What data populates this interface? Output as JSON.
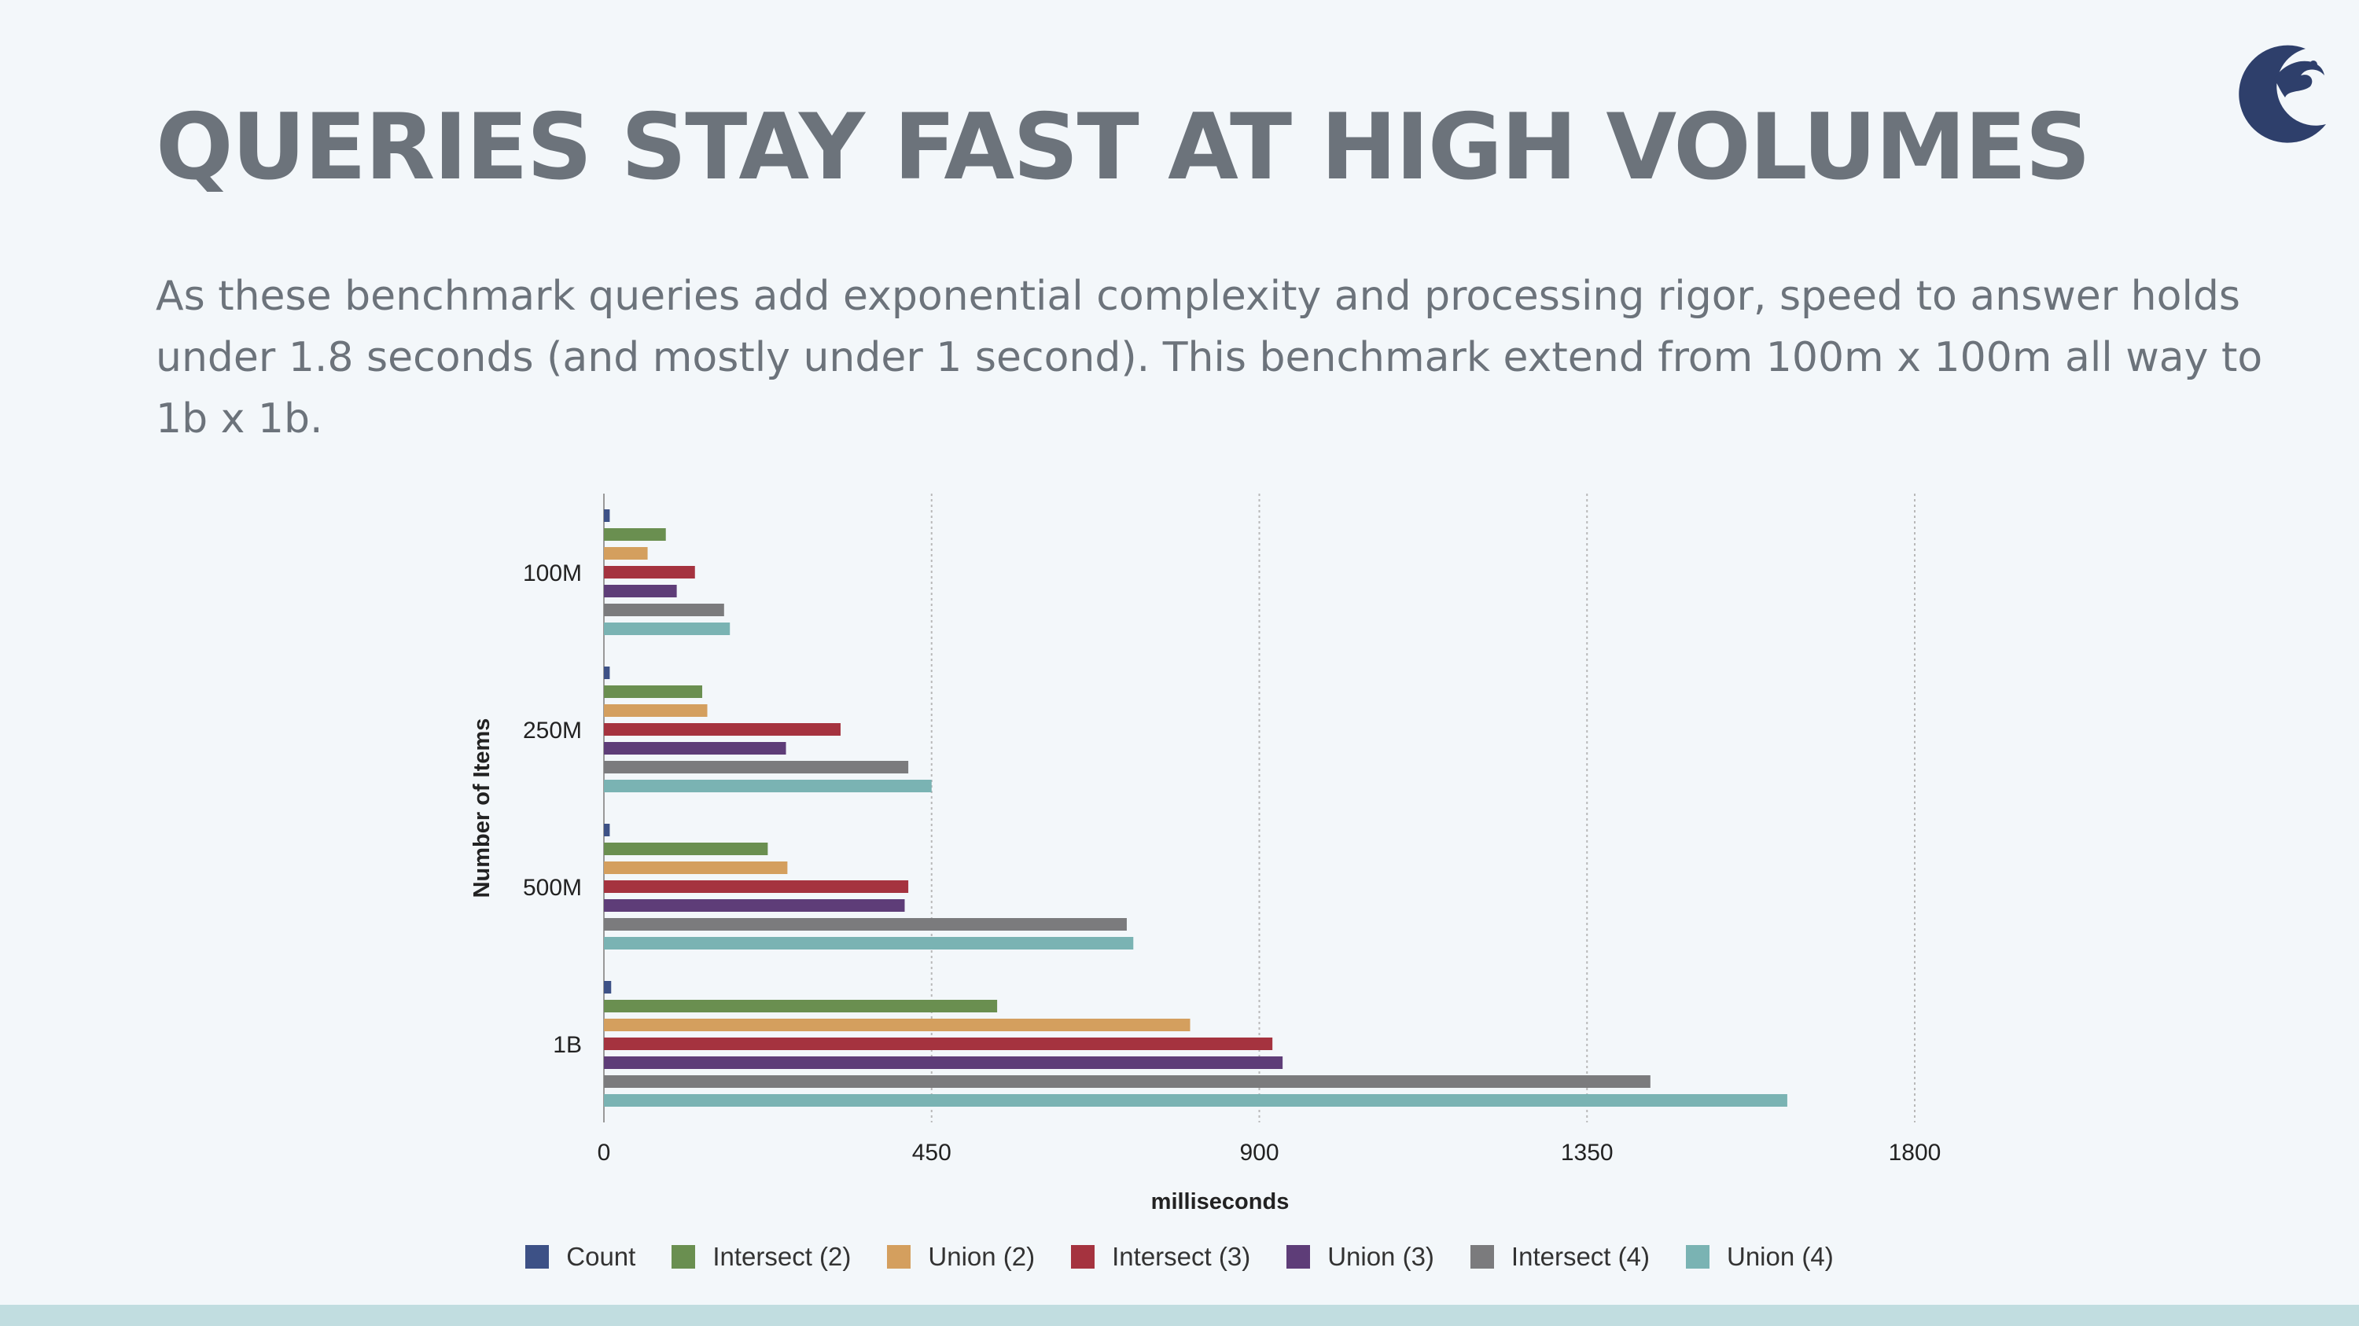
{
  "slide": {
    "title": "QUERIES STAY FAST AT HIGH VOLUMES",
    "subtitle": "As these benchmark queries add exponential complexity and processing rigor, speed to answer holds under 1.8 seconds (and mostly under 1 second).  This benchmark extend from 100m x 100m all way to 1b x 1b.",
    "logo_icon": "crescent-wave-logo-icon",
    "accent_color": "#2e3f6b",
    "band_color": "#c1dde0"
  },
  "chart_data": {
    "type": "bar",
    "orientation": "horizontal",
    "title": "",
    "xlabel": "milliseconds",
    "ylabel": "Number of Items",
    "xlim": [
      0,
      1800
    ],
    "xticks": [
      0,
      450,
      900,
      1350,
      1800
    ],
    "grid": true,
    "legend_position": "bottom",
    "categories": [
      "100M",
      "250M",
      "500M",
      "1B"
    ],
    "series": [
      {
        "name": "Count",
        "color": "#3d5186",
        "values": [
          8,
          8,
          8,
          10
        ]
      },
      {
        "name": "Intersect (2)",
        "color": "#6a8f50",
        "values": [
          85,
          135,
          225,
          540
        ]
      },
      {
        "name": "Union (2)",
        "color": "#d49f5e",
        "values": [
          60,
          142,
          252,
          805
        ]
      },
      {
        "name": "Intersect (3)",
        "color": "#a5333f",
        "values": [
          125,
          325,
          418,
          918
        ]
      },
      {
        "name": "Union (3)",
        "color": "#5e3d78",
        "values": [
          100,
          250,
          413,
          932
        ]
      },
      {
        "name": "Intersect (4)",
        "color": "#7b7b7d",
        "values": [
          165,
          418,
          718,
          1437
        ]
      },
      {
        "name": "Union (4)",
        "color": "#7ab3b3",
        "values": [
          173,
          450,
          727,
          1625
        ]
      }
    ]
  }
}
